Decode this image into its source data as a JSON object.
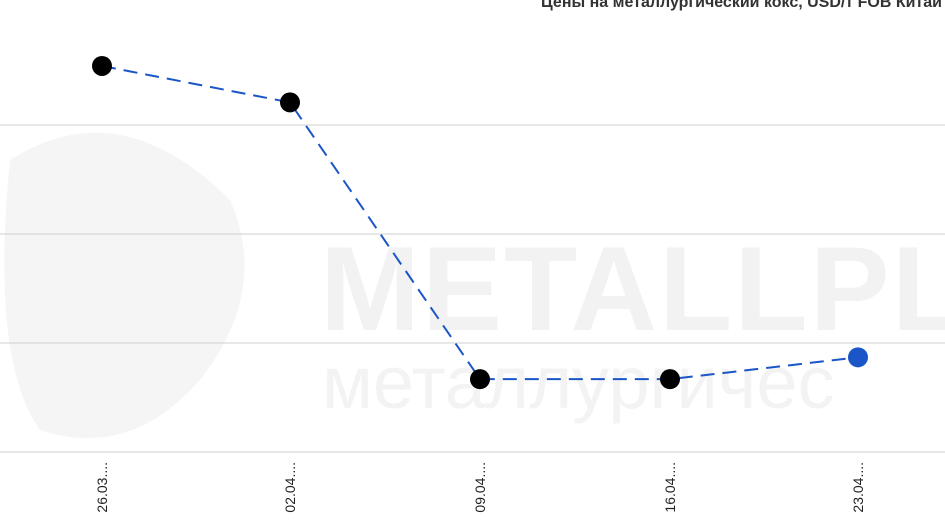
{
  "chart_data": {
    "type": "line",
    "title": "Цены на металлургический кокс, USD/т FOB Китай",
    "categories": [
      "26.03....",
      "02.04....",
      "09.04....",
      "16.04....",
      "23.04...."
    ],
    "series": [
      {
        "values": [
          373,
          368,
          330,
          330,
          333
        ],
        "color": "#1a56c8",
        "point_colors": [
          "#000000",
          "#000000",
          "#000000",
          "#000000",
          "#1a56c8"
        ],
        "line_style": "dashed"
      }
    ],
    "ylim": [
      320,
      380
    ],
    "grid": true,
    "legend": "none"
  },
  "watermark": {
    "line1": "METALLPL",
    "line2": "металлургичес"
  }
}
